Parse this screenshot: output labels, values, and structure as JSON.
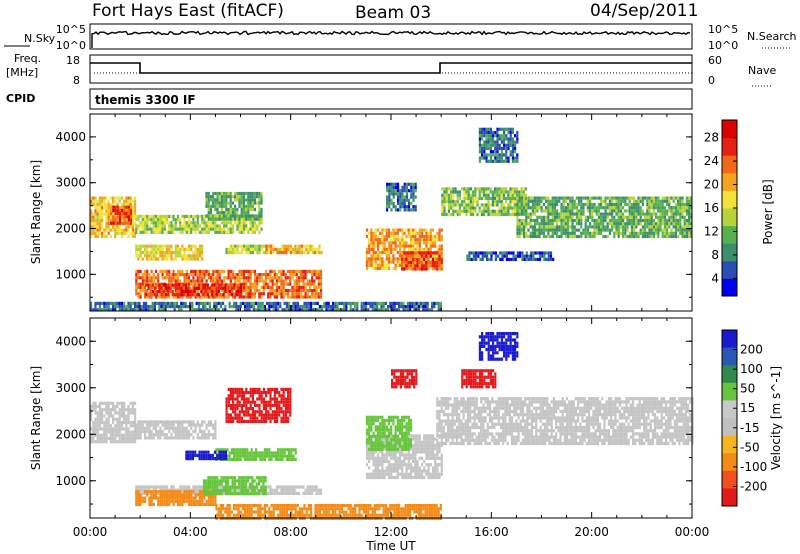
{
  "header": {
    "station": "Fort Hays East (fitACF)",
    "beam": "Beam 03",
    "date": "04/Sep/2011"
  },
  "top_panels": {
    "nsky_label": "N.Sky",
    "nsky_ticks": [
      "10^5",
      "10^0"
    ],
    "nsearch_label": "N.Search",
    "nsearch_ticks": [
      "10^5",
      "10^0"
    ],
    "freq_label_1": "Freq.",
    "freq_label_2": "[MHz]",
    "freq_ticks": [
      "18",
      "8"
    ],
    "nave_label": "Nave",
    "nave_ticks": [
      "60",
      "0"
    ],
    "cpid_label": "CPID",
    "cpid_value": "themis 3300 IF"
  },
  "colors": {
    "power_scale": [
      "#0000ee",
      "#2a4db5",
      "#3b8f6a",
      "#58b04f",
      "#b8d23a",
      "#f2e23a",
      "#f6a21f",
      "#f2681a",
      "#e32213",
      "#dd0000"
    ],
    "velocity_scale": [
      "#e31a1c",
      "#f0501e",
      "#f58a16",
      "#f5b51e",
      "#c0c0c0",
      "#c8c8c8",
      "#67c53b",
      "#2f8a4c",
      "#2a57b2",
      "#1a1acf"
    ],
    "gray": "#c4c4c4"
  },
  "chart_data": [
    {
      "type": "heatmap",
      "title": "Power [dB]",
      "xlabel": "Time UT",
      "ylabel": "Slant Range [km]",
      "x_ticks": [
        "00:00",
        "04:00",
        "08:00",
        "12:00",
        "16:00",
        "20:00",
        "00:00"
      ],
      "y_ticks": [
        "1000",
        "2000",
        "3000",
        "4000"
      ],
      "ylim": [
        200,
        4500
      ],
      "xlim_hours": [
        0,
        24
      ],
      "colorbar_label": "Power [dB]",
      "colorbar_ticks": [
        "4",
        "8",
        "12",
        "16",
        "20",
        "24",
        "28"
      ],
      "regions": [
        {
          "t0": 0.0,
          "t1": 1.8,
          "r0": 1850,
          "r1": 2700,
          "value": 20
        },
        {
          "t0": 0.8,
          "t1": 1.6,
          "r0": 2100,
          "r1": 2500,
          "value": 26
        },
        {
          "t0": 1.8,
          "t1": 9.2,
          "r0": 500,
          "r1": 1100,
          "value": 24
        },
        {
          "t0": 2.2,
          "t1": 6.0,
          "r0": 550,
          "r1": 800,
          "value": 28
        },
        {
          "t0": 1.8,
          "t1": 4.5,
          "r0": 1350,
          "r1": 1650,
          "value": 18
        },
        {
          "t0": 5.4,
          "t1": 7.2,
          "r0": 1450,
          "r1": 1650,
          "value": 16
        },
        {
          "t0": 7.0,
          "t1": 9.2,
          "r0": 1450,
          "r1": 1650,
          "value": 20
        },
        {
          "t0": 1.8,
          "t1": 6.8,
          "r0": 1900,
          "r1": 2300,
          "value": 16
        },
        {
          "t0": 4.6,
          "t1": 6.8,
          "r0": 2200,
          "r1": 2800,
          "value": 12
        },
        {
          "t0": 11.0,
          "t1": 14.0,
          "r0": 1100,
          "r1": 2000,
          "value": 22
        },
        {
          "t0": 12.4,
          "t1": 14.0,
          "r0": 1100,
          "r1": 1500,
          "value": 26
        },
        {
          "t0": 11.8,
          "t1": 13.0,
          "r0": 2400,
          "r1": 3000,
          "value": 8
        },
        {
          "t0": 14.0,
          "t1": 17.4,
          "r0": 2300,
          "r1": 2900,
          "value": 14
        },
        {
          "t0": 17.0,
          "t1": 24.0,
          "r0": 1850,
          "r1": 2700,
          "value": 12
        },
        {
          "t0": 15.0,
          "t1": 18.5,
          "r0": 1300,
          "r1": 1500,
          "value": 6
        },
        {
          "t0": 0.0,
          "t1": 14.0,
          "r0": 200,
          "r1": 400,
          "value": 8
        },
        {
          "t0": 15.5,
          "t1": 17.0,
          "r0": 3500,
          "r1": 4200,
          "value": 8
        }
      ]
    },
    {
      "type": "heatmap",
      "title": "Velocity [m s^-1]",
      "xlabel": "Time UT",
      "ylabel": "Slant Range [km]",
      "x_ticks": [
        "00:00",
        "04:00",
        "08:00",
        "12:00",
        "16:00",
        "20:00",
        "00:00"
      ],
      "y_ticks": [
        "1000",
        "2000",
        "3000",
        "4000"
      ],
      "ylim": [
        200,
        4500
      ],
      "xlim_hours": [
        0,
        24
      ],
      "colorbar_label": "Velocity [m s^-1]",
      "colorbar_ticks": [
        "200",
        "100",
        "50",
        "15",
        "-15",
        "-50",
        "-100",
        "-200"
      ],
      "regions": [
        {
          "t0": 0.0,
          "t1": 1.8,
          "r0": 1850,
          "r1": 2700,
          "value": 0
        },
        {
          "t0": 1.8,
          "t1": 9.2,
          "r0": 700,
          "r1": 900,
          "value": 0
        },
        {
          "t0": 1.8,
          "t1": 5.0,
          "r0": 500,
          "r1": 800,
          "value": -60
        },
        {
          "t0": 4.5,
          "t1": 7.0,
          "r0": 700,
          "r1": 1100,
          "value": 30
        },
        {
          "t0": 5.0,
          "t1": 8.2,
          "r0": 1450,
          "r1": 1700,
          "value": 40
        },
        {
          "t0": 3.8,
          "t1": 5.4,
          "r0": 1450,
          "r1": 1650,
          "value": 200
        },
        {
          "t0": 5.4,
          "t1": 8.0,
          "r0": 2300,
          "r1": 3000,
          "value": -200
        },
        {
          "t0": 1.8,
          "t1": 5.0,
          "r0": 1900,
          "r1": 2300,
          "value": 0
        },
        {
          "t0": 11.0,
          "t1": 14.0,
          "r0": 1100,
          "r1": 2000,
          "value": 0
        },
        {
          "t0": 11.0,
          "t1": 12.8,
          "r0": 1700,
          "r1": 2400,
          "value": 40
        },
        {
          "t0": 12.0,
          "t1": 13.0,
          "r0": 3000,
          "r1": 3400,
          "value": -200
        },
        {
          "t0": 13.8,
          "t1": 24.0,
          "r0": 1800,
          "r1": 2800,
          "value": 0
        },
        {
          "t0": 14.8,
          "t1": 16.2,
          "r0": 3000,
          "r1": 3400,
          "value": -200
        },
        {
          "t0": 15.5,
          "t1": 17.0,
          "r0": 3600,
          "r1": 4200,
          "value": 200
        },
        {
          "t0": 5.0,
          "t1": 14.0,
          "r0": 200,
          "r1": 500,
          "value": -60
        }
      ]
    }
  ]
}
